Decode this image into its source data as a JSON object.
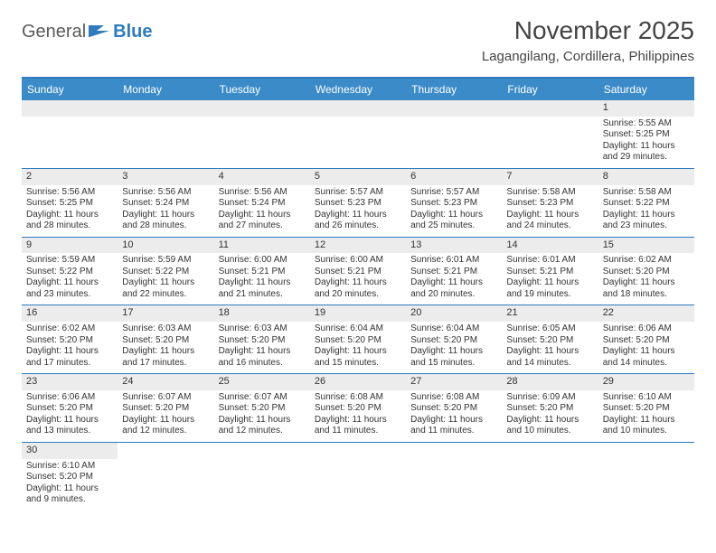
{
  "logo": {
    "text1": "General",
    "text2": "Blue"
  },
  "title": "November 2025",
  "location": "Lagangilang, Cordillera, Philippines",
  "colors": {
    "header_bg": "#3b8bc9",
    "header_text": "#ffffff",
    "border": "#2e7bbf",
    "daynum_bg": "#ececec",
    "text": "#333333",
    "background": "#ffffff"
  },
  "day_headers": [
    "Sunday",
    "Monday",
    "Tuesday",
    "Wednesday",
    "Thursday",
    "Friday",
    "Saturday"
  ],
  "weeks": [
    [
      {
        "num": "",
        "sunrise": "",
        "sunset": "",
        "daylight1": "",
        "daylight2": ""
      },
      {
        "num": "",
        "sunrise": "",
        "sunset": "",
        "daylight1": "",
        "daylight2": ""
      },
      {
        "num": "",
        "sunrise": "",
        "sunset": "",
        "daylight1": "",
        "daylight2": ""
      },
      {
        "num": "",
        "sunrise": "",
        "sunset": "",
        "daylight1": "",
        "daylight2": ""
      },
      {
        "num": "",
        "sunrise": "",
        "sunset": "",
        "daylight1": "",
        "daylight2": ""
      },
      {
        "num": "",
        "sunrise": "",
        "sunset": "",
        "daylight1": "",
        "daylight2": ""
      },
      {
        "num": "1",
        "sunrise": "Sunrise: 5:55 AM",
        "sunset": "Sunset: 5:25 PM",
        "daylight1": "Daylight: 11 hours",
        "daylight2": "and 29 minutes."
      }
    ],
    [
      {
        "num": "2",
        "sunrise": "Sunrise: 5:56 AM",
        "sunset": "Sunset: 5:25 PM",
        "daylight1": "Daylight: 11 hours",
        "daylight2": "and 28 minutes."
      },
      {
        "num": "3",
        "sunrise": "Sunrise: 5:56 AM",
        "sunset": "Sunset: 5:24 PM",
        "daylight1": "Daylight: 11 hours",
        "daylight2": "and 28 minutes."
      },
      {
        "num": "4",
        "sunrise": "Sunrise: 5:56 AM",
        "sunset": "Sunset: 5:24 PM",
        "daylight1": "Daylight: 11 hours",
        "daylight2": "and 27 minutes."
      },
      {
        "num": "5",
        "sunrise": "Sunrise: 5:57 AM",
        "sunset": "Sunset: 5:23 PM",
        "daylight1": "Daylight: 11 hours",
        "daylight2": "and 26 minutes."
      },
      {
        "num": "6",
        "sunrise": "Sunrise: 5:57 AM",
        "sunset": "Sunset: 5:23 PM",
        "daylight1": "Daylight: 11 hours",
        "daylight2": "and 25 minutes."
      },
      {
        "num": "7",
        "sunrise": "Sunrise: 5:58 AM",
        "sunset": "Sunset: 5:23 PM",
        "daylight1": "Daylight: 11 hours",
        "daylight2": "and 24 minutes."
      },
      {
        "num": "8",
        "sunrise": "Sunrise: 5:58 AM",
        "sunset": "Sunset: 5:22 PM",
        "daylight1": "Daylight: 11 hours",
        "daylight2": "and 23 minutes."
      }
    ],
    [
      {
        "num": "9",
        "sunrise": "Sunrise: 5:59 AM",
        "sunset": "Sunset: 5:22 PM",
        "daylight1": "Daylight: 11 hours",
        "daylight2": "and 23 minutes."
      },
      {
        "num": "10",
        "sunrise": "Sunrise: 5:59 AM",
        "sunset": "Sunset: 5:22 PM",
        "daylight1": "Daylight: 11 hours",
        "daylight2": "and 22 minutes."
      },
      {
        "num": "11",
        "sunrise": "Sunrise: 6:00 AM",
        "sunset": "Sunset: 5:21 PM",
        "daylight1": "Daylight: 11 hours",
        "daylight2": "and 21 minutes."
      },
      {
        "num": "12",
        "sunrise": "Sunrise: 6:00 AM",
        "sunset": "Sunset: 5:21 PM",
        "daylight1": "Daylight: 11 hours",
        "daylight2": "and 20 minutes."
      },
      {
        "num": "13",
        "sunrise": "Sunrise: 6:01 AM",
        "sunset": "Sunset: 5:21 PM",
        "daylight1": "Daylight: 11 hours",
        "daylight2": "and 20 minutes."
      },
      {
        "num": "14",
        "sunrise": "Sunrise: 6:01 AM",
        "sunset": "Sunset: 5:21 PM",
        "daylight1": "Daylight: 11 hours",
        "daylight2": "and 19 minutes."
      },
      {
        "num": "15",
        "sunrise": "Sunrise: 6:02 AM",
        "sunset": "Sunset: 5:20 PM",
        "daylight1": "Daylight: 11 hours",
        "daylight2": "and 18 minutes."
      }
    ],
    [
      {
        "num": "16",
        "sunrise": "Sunrise: 6:02 AM",
        "sunset": "Sunset: 5:20 PM",
        "daylight1": "Daylight: 11 hours",
        "daylight2": "and 17 minutes."
      },
      {
        "num": "17",
        "sunrise": "Sunrise: 6:03 AM",
        "sunset": "Sunset: 5:20 PM",
        "daylight1": "Daylight: 11 hours",
        "daylight2": "and 17 minutes."
      },
      {
        "num": "18",
        "sunrise": "Sunrise: 6:03 AM",
        "sunset": "Sunset: 5:20 PM",
        "daylight1": "Daylight: 11 hours",
        "daylight2": "and 16 minutes."
      },
      {
        "num": "19",
        "sunrise": "Sunrise: 6:04 AM",
        "sunset": "Sunset: 5:20 PM",
        "daylight1": "Daylight: 11 hours",
        "daylight2": "and 15 minutes."
      },
      {
        "num": "20",
        "sunrise": "Sunrise: 6:04 AM",
        "sunset": "Sunset: 5:20 PM",
        "daylight1": "Daylight: 11 hours",
        "daylight2": "and 15 minutes."
      },
      {
        "num": "21",
        "sunrise": "Sunrise: 6:05 AM",
        "sunset": "Sunset: 5:20 PM",
        "daylight1": "Daylight: 11 hours",
        "daylight2": "and 14 minutes."
      },
      {
        "num": "22",
        "sunrise": "Sunrise: 6:06 AM",
        "sunset": "Sunset: 5:20 PM",
        "daylight1": "Daylight: 11 hours",
        "daylight2": "and 14 minutes."
      }
    ],
    [
      {
        "num": "23",
        "sunrise": "Sunrise: 6:06 AM",
        "sunset": "Sunset: 5:20 PM",
        "daylight1": "Daylight: 11 hours",
        "daylight2": "and 13 minutes."
      },
      {
        "num": "24",
        "sunrise": "Sunrise: 6:07 AM",
        "sunset": "Sunset: 5:20 PM",
        "daylight1": "Daylight: 11 hours",
        "daylight2": "and 12 minutes."
      },
      {
        "num": "25",
        "sunrise": "Sunrise: 6:07 AM",
        "sunset": "Sunset: 5:20 PM",
        "daylight1": "Daylight: 11 hours",
        "daylight2": "and 12 minutes."
      },
      {
        "num": "26",
        "sunrise": "Sunrise: 6:08 AM",
        "sunset": "Sunset: 5:20 PM",
        "daylight1": "Daylight: 11 hours",
        "daylight2": "and 11 minutes."
      },
      {
        "num": "27",
        "sunrise": "Sunrise: 6:08 AM",
        "sunset": "Sunset: 5:20 PM",
        "daylight1": "Daylight: 11 hours",
        "daylight2": "and 11 minutes."
      },
      {
        "num": "28",
        "sunrise": "Sunrise: 6:09 AM",
        "sunset": "Sunset: 5:20 PM",
        "daylight1": "Daylight: 11 hours",
        "daylight2": "and 10 minutes."
      },
      {
        "num": "29",
        "sunrise": "Sunrise: 6:10 AM",
        "sunset": "Sunset: 5:20 PM",
        "daylight1": "Daylight: 11 hours",
        "daylight2": "and 10 minutes."
      }
    ],
    [
      {
        "num": "30",
        "sunrise": "Sunrise: 6:10 AM",
        "sunset": "Sunset: 5:20 PM",
        "daylight1": "Daylight: 11 hours",
        "daylight2": "and 9 minutes."
      },
      {
        "num": "",
        "sunrise": "",
        "sunset": "",
        "daylight1": "",
        "daylight2": ""
      },
      {
        "num": "",
        "sunrise": "",
        "sunset": "",
        "daylight1": "",
        "daylight2": ""
      },
      {
        "num": "",
        "sunrise": "",
        "sunset": "",
        "daylight1": "",
        "daylight2": ""
      },
      {
        "num": "",
        "sunrise": "",
        "sunset": "",
        "daylight1": "",
        "daylight2": ""
      },
      {
        "num": "",
        "sunrise": "",
        "sunset": "",
        "daylight1": "",
        "daylight2": ""
      },
      {
        "num": "",
        "sunrise": "",
        "sunset": "",
        "daylight1": "",
        "daylight2": ""
      }
    ]
  ]
}
